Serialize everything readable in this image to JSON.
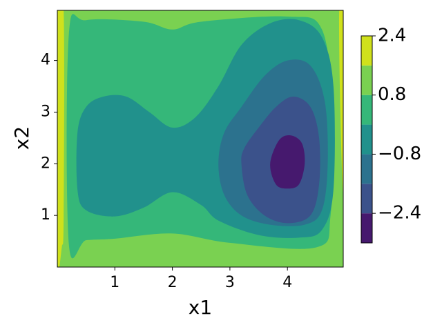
{
  "chart_data": {
    "type": "contourf",
    "x_label": "x1",
    "y_label": "x2",
    "xlim": [
      0,
      4.97
    ],
    "ylim": [
      0,
      4.97
    ],
    "xticks": [
      1,
      2,
      3,
      4
    ],
    "yticks": [
      1,
      2,
      3,
      4
    ],
    "levels": [
      -3.2,
      -2.4,
      -1.6,
      -0.8,
      0,
      0.8,
      1.6,
      2.4
    ],
    "colors": [
      "#46196e",
      "#3b528b",
      "#2c728e",
      "#21918c",
      "#35b779",
      "#7ad151",
      "#d0e11c"
    ],
    "colorbar_ticks": [
      2.4,
      0.8,
      {
        "value": -0.8,
        "label": "−0.8"
      },
      {
        "value": -2.4,
        "label": "−2.4"
      }
    ],
    "background_color": "#7ad151",
    "regions": [
      {
        "color": "#d0e11c",
        "x": [
          0,
          0.11,
          0.11,
          0.08,
          0
        ],
        "y": [
          4.97,
          4.97,
          1.0,
          0.4,
          0.3
        ]
      },
      {
        "color": "#d0e11c",
        "x": [
          4.9,
          4.97,
          4.97,
          4.92
        ],
        "y": [
          4.97,
          4.97,
          1.5,
          3.0
        ]
      },
      {
        "color": "#35b779",
        "x": [
          0.2,
          0.5,
          1.5,
          2.0,
          2.5,
          4.0,
          4.6,
          4.78,
          4.75,
          4.5,
          3.0,
          2.0,
          1.0,
          0.5,
          0.2
        ],
        "y": [
          4.5,
          4.78,
          4.75,
          4.6,
          4.75,
          4.85,
          4.6,
          3.0,
          1.0,
          0.38,
          0.47,
          0.65,
          0.55,
          0.52,
          0.45
        ]
      },
      {
        "color": "#21918c",
        "x": [
          0.35,
          0.5,
          1.0,
          1.5,
          2.0,
          2.5,
          2.8,
          3.5,
          4.2,
          4.6,
          4.8,
          4.8,
          4.6,
          4.2,
          3.7,
          3.2,
          2.8,
          2.4,
          2.0,
          1.6,
          1.2,
          0.8,
          0.5,
          0.35
        ],
        "y": [
          1.5,
          1.1,
          0.98,
          1.15,
          1.45,
          1.2,
          0.9,
          0.62,
          0.57,
          0.72,
          1.5,
          3.5,
          4.45,
          4.78,
          4.72,
          4.3,
          3.5,
          2.9,
          2.7,
          3.0,
          3.3,
          3.3,
          3.1,
          2.6
        ]
      },
      {
        "color": "#2c728e",
        "x": [
          2.8,
          2.9,
          3.2,
          3.7,
          4.3,
          4.6,
          4.7,
          4.65,
          4.4,
          4.0,
          3.6,
          3.2,
          2.9
        ],
        "y": [
          2.0,
          1.4,
          1.0,
          0.82,
          0.82,
          1.1,
          2.0,
          3.2,
          3.9,
          4.0,
          3.7,
          3.1,
          2.6
        ]
      },
      {
        "color": "#3b528b",
        "x": [
          3.2,
          3.3,
          3.6,
          4.0,
          4.4,
          4.55,
          4.55,
          4.4,
          4.1,
          3.8,
          3.5,
          3.25
        ],
        "y": [
          2.0,
          1.4,
          1.0,
          0.85,
          1.0,
          1.6,
          2.5,
          3.1,
          3.3,
          3.1,
          2.7,
          2.3
        ]
      },
      {
        "color": "#46196e",
        "x": [
          3.7,
          3.8,
          4.0,
          4.2,
          4.3,
          4.25,
          4.05,
          3.85
        ],
        "y": [
          2.0,
          1.6,
          1.52,
          1.6,
          2.0,
          2.4,
          2.55,
          2.45
        ]
      }
    ]
  }
}
